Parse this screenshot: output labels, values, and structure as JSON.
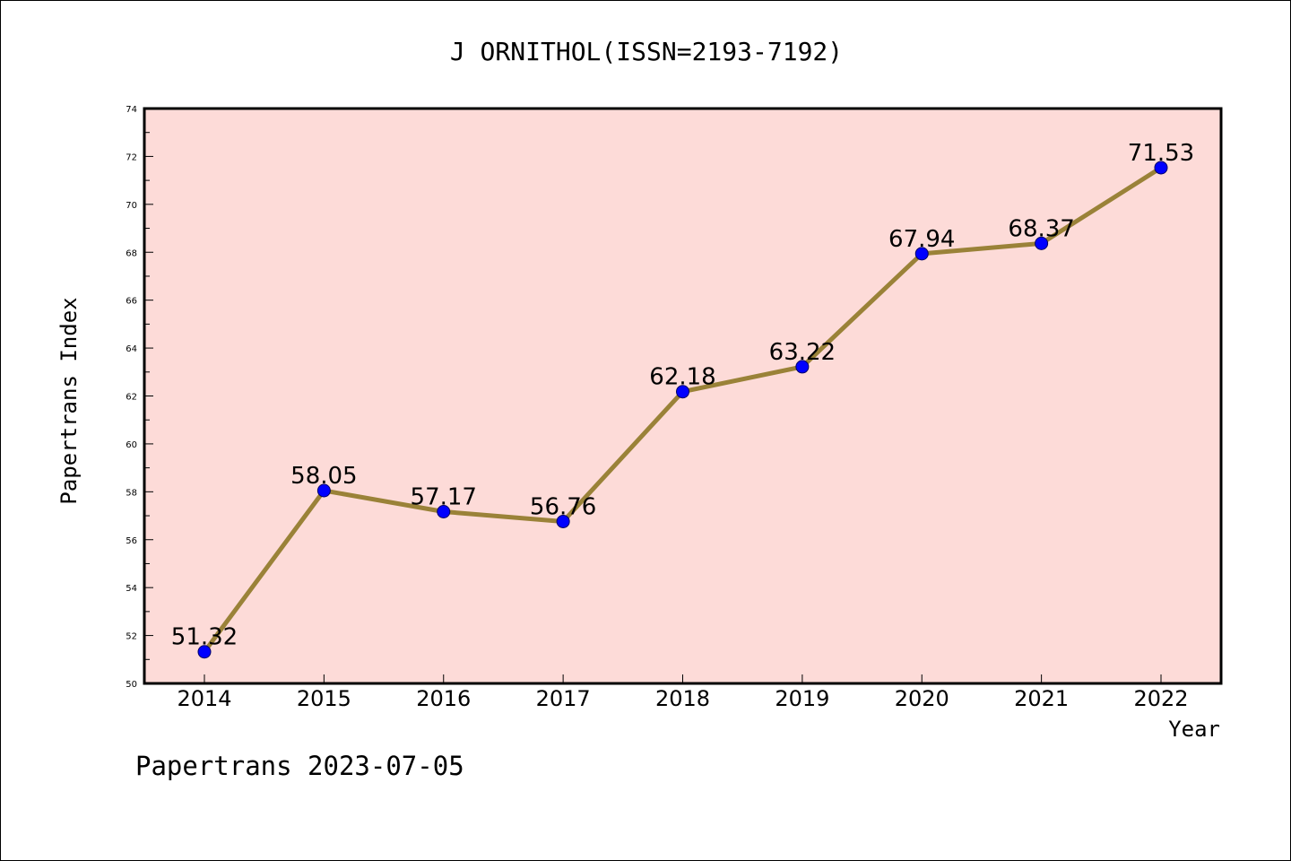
{
  "colors": {
    "plot_background": "#fddbd8",
    "line": "#9a8238",
    "marker": "#0000ff",
    "axis": "#000000"
  },
  "footer": {
    "text": "Papertrans 2023-07-05"
  },
  "chart_data": {
    "type": "line",
    "title": "J ORNITHOL(ISSN=2193-7192)",
    "xlabel": "Year",
    "ylabel": "Papertrans Index",
    "x": [
      "2014",
      "2015",
      "2016",
      "2017",
      "2018",
      "2019",
      "2020",
      "2021",
      "2022"
    ],
    "series": [
      {
        "values": [
          51.32,
          58.05,
          57.17,
          56.76,
          62.18,
          63.22,
          67.94,
          68.37,
          71.53
        ],
        "labels": [
          "51.32",
          "58.05",
          "57.17",
          "56.76",
          "62.18",
          "63.22",
          "67.94",
          "68.37",
          "71.53"
        ]
      }
    ],
    "ylim": [
      50,
      74
    ],
    "yticks": [
      "50",
      "52",
      "54",
      "56",
      "58",
      "60",
      "62",
      "64",
      "66",
      "68",
      "70",
      "72",
      "74"
    ],
    "grid": false,
    "legend": "none"
  }
}
